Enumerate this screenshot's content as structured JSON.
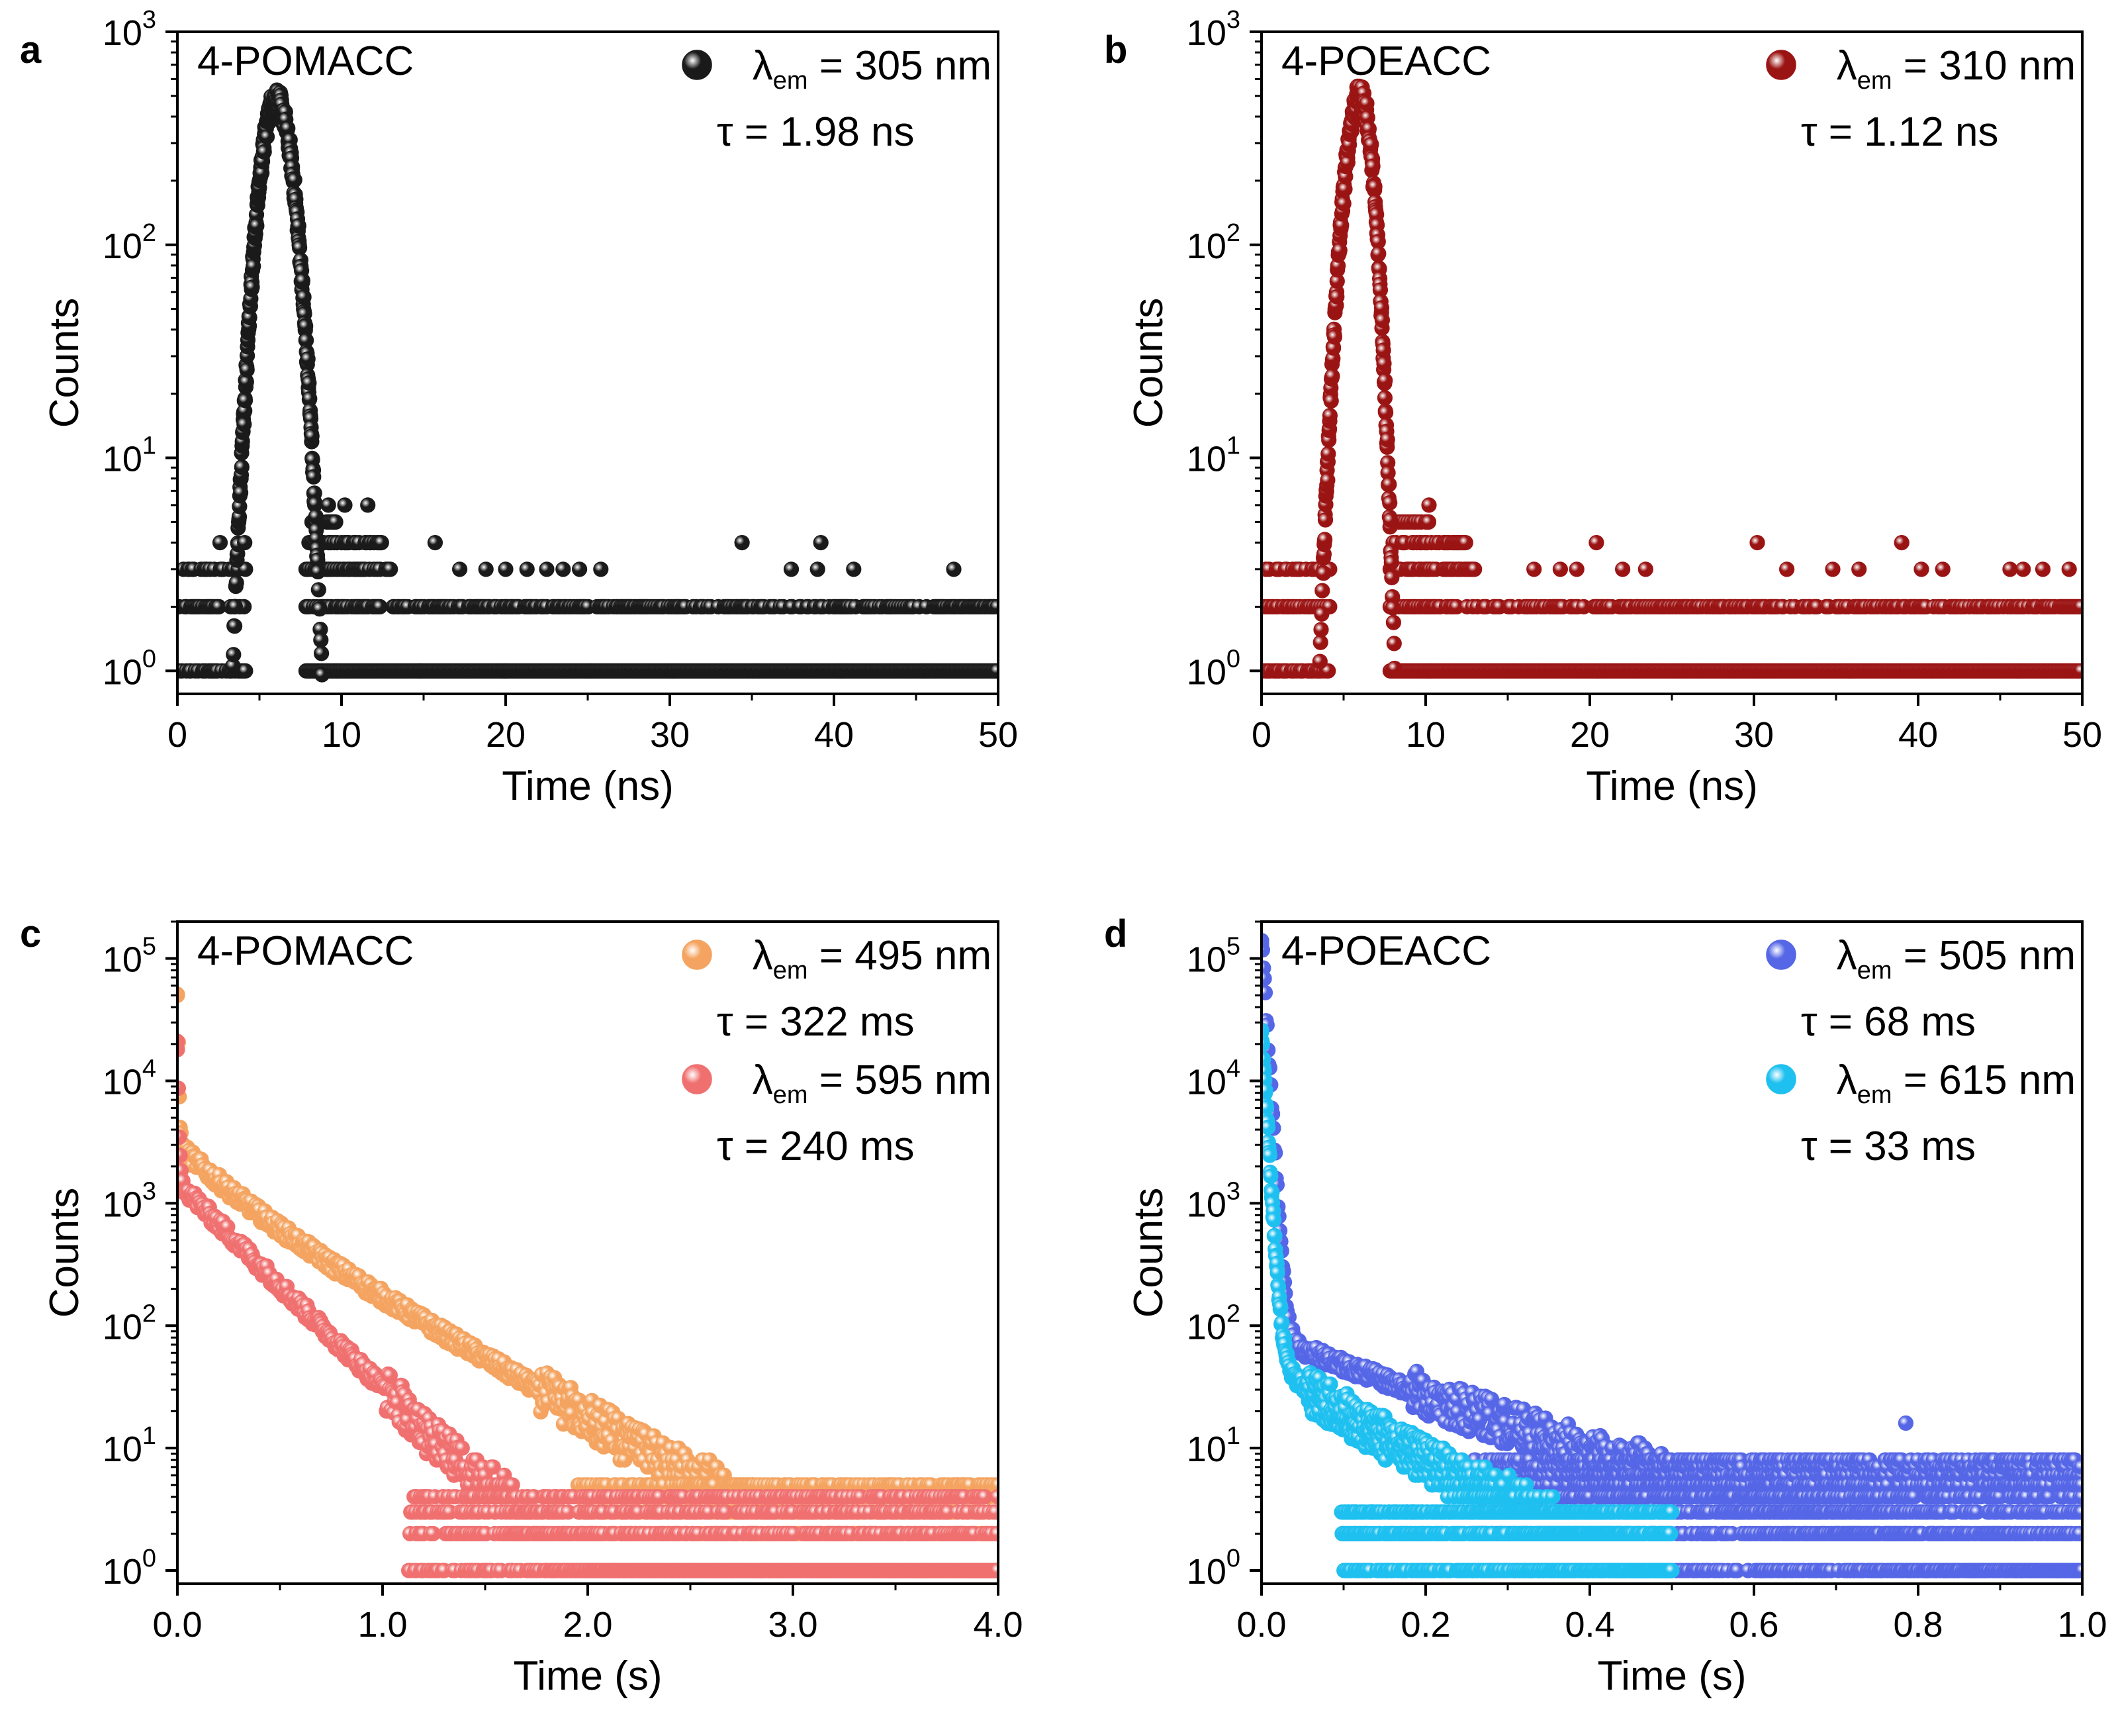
{
  "figure": {
    "description_panels": [
      "a",
      "b",
      "c",
      "d"
    ]
  },
  "chart_data": [
    {
      "panel": "a",
      "type": "scatter",
      "title": "4-POMACC",
      "xlabel": "Time (ns)",
      "ylabel": "Counts",
      "xlim": [
        0,
        50
      ],
      "ylim": [
        0.78,
        1000
      ],
      "yscale": "log",
      "xticks": [
        "0",
        "10",
        "20",
        "30",
        "40",
        "50"
      ],
      "yticks": [
        {
          "base": "10",
          "exp": "0"
        },
        {
          "base": "10",
          "exp": "1"
        },
        {
          "base": "10",
          "exp": "2"
        },
        {
          "base": "10",
          "exp": "3"
        }
      ],
      "legend": [
        {
          "symbol": "λ",
          "sub": "em",
          "text": " = 305 nm",
          "tau": "τ = 1.98 ns",
          "color": "#1a1a1a"
        }
      ],
      "series": [
        {
          "name": "λem = 305 nm",
          "color": "#1a1a1a",
          "kind": "irf",
          "peak_x": 6.0,
          "peak_y": 480,
          "sigma_rise": 0.75,
          "sigma_fall": 0.8,
          "extra_points": [
            [
              2.6,
              4
            ],
            [
              4.1,
              4
            ],
            [
              9.2,
              6
            ],
            [
              10.2,
              6
            ],
            [
              11.6,
              6
            ],
            [
              15.7,
              4
            ],
            [
              34.4,
              4
            ],
            [
              39.2,
              4
            ],
            [
              37.4,
              3
            ],
            [
              39.0,
              3
            ],
            [
              41.2,
              3
            ],
            [
              47.3,
              3
            ],
            [
              17.2,
              3
            ],
            [
              18.8,
              3
            ],
            [
              20.0,
              3
            ],
            [
              21.3,
              3
            ],
            [
              22.5,
              3
            ],
            [
              23.5,
              3
            ],
            [
              24.5,
              3
            ],
            [
              25.8,
              3
            ]
          ],
          "baseline_levels": [
            1,
            2,
            3
          ],
          "baseline_end": 50
        }
      ]
    },
    {
      "panel": "b",
      "type": "scatter",
      "title": "4-POEACC",
      "xlabel": "Time (ns)",
      "ylabel": "Counts",
      "xlim": [
        0,
        50
      ],
      "ylim": [
        0.78,
        1000
      ],
      "yscale": "log",
      "xticks": [
        "0",
        "10",
        "20",
        "30",
        "40",
        "50"
      ],
      "yticks": [
        {
          "base": "10",
          "exp": "0"
        },
        {
          "base": "10",
          "exp": "1"
        },
        {
          "base": "10",
          "exp": "2"
        },
        {
          "base": "10",
          "exp": "3"
        }
      ],
      "legend": [
        {
          "symbol": "λ",
          "sub": "em",
          "text": " = 310 nm",
          "tau": "τ = 1.12 ns",
          "color": "#9b1414"
        }
      ],
      "series": [
        {
          "name": "λem = 310 nm",
          "color": "#9b1414",
          "kind": "irf",
          "peak_x": 6.0,
          "peak_y": 500,
          "sigma_rise": 0.7,
          "sigma_fall": 0.6,
          "extra_points": [
            [
              10.2,
              6
            ],
            [
              20.4,
              4
            ],
            [
              30.2,
              4
            ],
            [
              39.0,
              4
            ],
            [
              16.6,
              3
            ],
            [
              18.2,
              3
            ],
            [
              19.2,
              3
            ],
            [
              22.0,
              3
            ],
            [
              23.4,
              3
            ],
            [
              32.0,
              3
            ],
            [
              34.8,
              3
            ],
            [
              36.4,
              3
            ],
            [
              40.2,
              3
            ],
            [
              41.5,
              3
            ],
            [
              45.6,
              3
            ],
            [
              46.4,
              3
            ],
            [
              47.6,
              3
            ],
            [
              49.2,
              3
            ]
          ],
          "baseline_levels": [
            1,
            2,
            3
          ],
          "baseline_end": 50
        }
      ]
    },
    {
      "panel": "c",
      "type": "scatter",
      "title": "4-POMACC",
      "xlabel": "Time (s)",
      "ylabel": "Counts",
      "xlim": [
        0,
        4
      ],
      "ylim": [
        0.78,
        200000
      ],
      "yscale": "log",
      "xticks": [
        "0.0",
        "1.0",
        "2.0",
        "3.0",
        "4.0"
      ],
      "yticks": [
        {
          "base": "10",
          "exp": "0"
        },
        {
          "base": "10",
          "exp": "1"
        },
        {
          "base": "10",
          "exp": "2"
        },
        {
          "base": "10",
          "exp": "3"
        },
        {
          "base": "10",
          "exp": "4"
        },
        {
          "base": "10",
          "exp": "5"
        }
      ],
      "legend": [
        {
          "symbol": "λ",
          "sub": "em",
          "text": " = 495 nm",
          "tau": "τ = 322 ms",
          "color": "#f4a460"
        },
        {
          "symbol": "λ",
          "sub": "em",
          "text": " = 595 nm",
          "tau": "τ = 240 ms",
          "color": "#f07070"
        }
      ],
      "series": [
        {
          "name": "λem = 495 nm",
          "color": "#f4a460",
          "kind": "decay",
          "a0": 50000,
          "comps": [
            [
              1500,
              0.2
            ],
            [
              1500,
              0.45
            ]
          ],
          "floor": 0.5,
          "xmax": 4,
          "tail_max": 5
        },
        {
          "name": "λem = 595 nm",
          "color": "#f07070",
          "kind": "decay",
          "a0": 18000,
          "comps": [
            [
              600,
              0.22
            ],
            [
              900,
              0.28
            ],
            [
              300,
              0.02
            ]
          ],
          "floor": 0.5,
          "xmax": 4,
          "tail_max": 4
        }
      ]
    },
    {
      "panel": "d",
      "type": "scatter",
      "title": "4-POEACC",
      "xlabel": "Time (s)",
      "ylabel": "Counts",
      "xlim": [
        0,
        1
      ],
      "ylim": [
        0.78,
        200000
      ],
      "yscale": "log",
      "xticks": [
        "0.0",
        "0.2",
        "0.4",
        "0.6",
        "0.8",
        "1.0"
      ],
      "yticks": [
        {
          "base": "10",
          "exp": "0"
        },
        {
          "base": "10",
          "exp": "1"
        },
        {
          "base": "10",
          "exp": "2"
        },
        {
          "base": "10",
          "exp": "3"
        },
        {
          "base": "10",
          "exp": "4"
        },
        {
          "base": "10",
          "exp": "5"
        }
      ],
      "legend": [
        {
          "symbol": "λ",
          "sub": "em",
          "text": " = 505 nm",
          "tau": "τ = 68 ms",
          "color": "#5566e6"
        },
        {
          "symbol": "λ",
          "sub": "em",
          "text": " = 615 nm",
          "tau": "τ = 33 ms",
          "color": "#1ec0f0"
        }
      ],
      "series": [
        {
          "name": "λem = 505 nm",
          "color": "#5566e6",
          "kind": "decay",
          "a0": 140000,
          "comps": [
            [
              25,
              0.25
            ],
            [
              60,
              0.15
            ],
            [
              200,
              0.01
            ]
          ],
          "floor": 3,
          "xmax": 1,
          "tail_max": 8
        },
        {
          "name": "λem = 615 nm",
          "color": "#1ec0f0",
          "kind": "decay",
          "a0": 25000,
          "comps": [
            [
              15,
              0.05
            ],
            [
              40,
              0.12
            ],
            [
              200,
              0.008
            ]
          ],
          "floor": 0.4,
          "xmax": 0.5,
          "tail_max": 3
        }
      ]
    }
  ]
}
